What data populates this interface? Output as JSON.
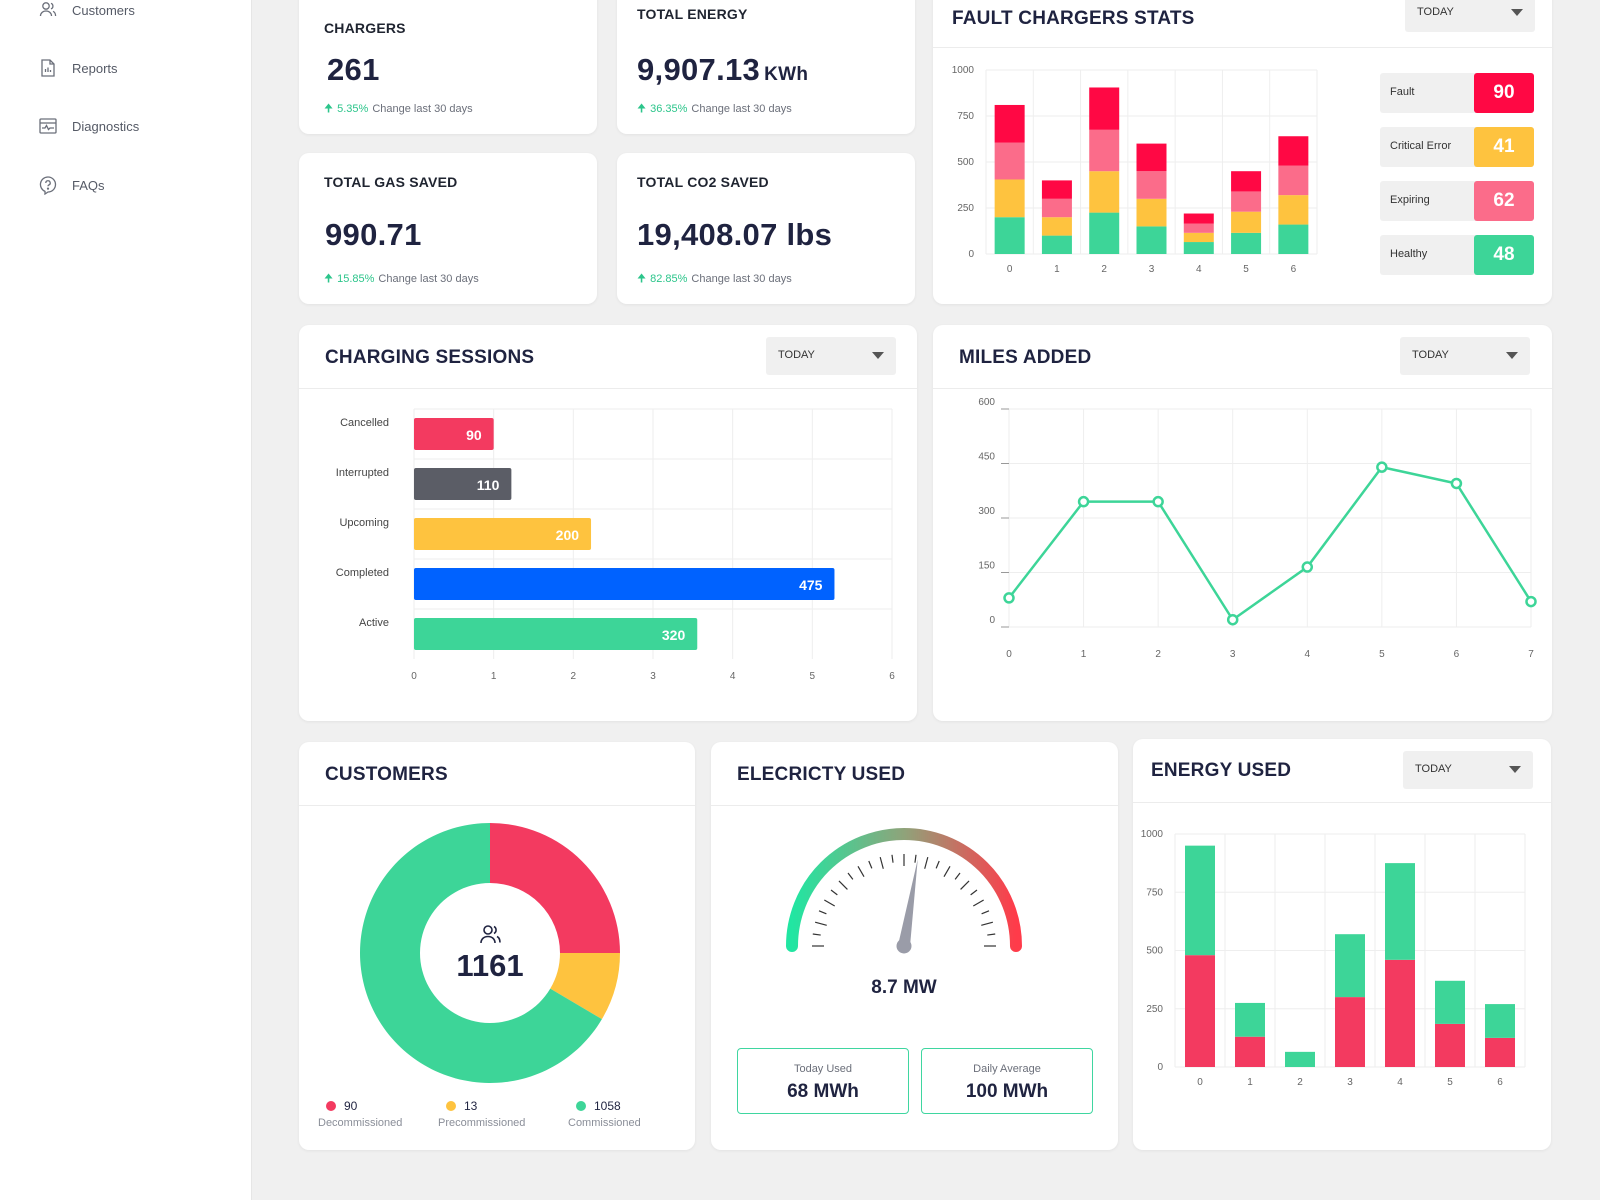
{
  "sidebar": {
    "items": [
      {
        "label": "Customers",
        "icon": "users-icon"
      },
      {
        "label": "Reports",
        "icon": "report-icon"
      },
      {
        "label": "Diagnostics",
        "icon": "diagnostics-icon"
      },
      {
        "label": "FAQs",
        "icon": "help-icon"
      }
    ]
  },
  "stats": {
    "chargers": {
      "title": "CHARGERS",
      "value": "261",
      "unit": "",
      "pct": "5.35%",
      "change": "Change last 30 days"
    },
    "energy": {
      "title": "TOTAL ENERGY",
      "value": "9,907.13",
      "unit": "KWh",
      "pct": "36.35%",
      "change": "Change last 30 days"
    },
    "gas": {
      "title": "TOTAL GAS SAVED",
      "value": "990.71",
      "unit": "",
      "pct": "15.85%",
      "change": "Change last 30 days"
    },
    "co2": {
      "title": "TOTAL CO2 SAVED",
      "value": "19,408.07 lbs",
      "unit": "",
      "pct": "82.85%",
      "change": "Change last 30 days"
    }
  },
  "fault": {
    "title": "FAULT CHARGERS STATS",
    "dropdown": "TODAY",
    "badges": [
      {
        "label": "Fault",
        "value": "90",
        "color": "#ff0844"
      },
      {
        "label": "Critical Error",
        "value": "41",
        "color": "#fec33f"
      },
      {
        "label": "Expiring",
        "value": "62",
        "color": "#fb6c8a"
      },
      {
        "label": "Healthy",
        "value": "48",
        "color": "#3dd598"
      }
    ]
  },
  "sessions": {
    "title": "CHARGING SESSIONS",
    "dropdown": "TODAY"
  },
  "miles": {
    "title": "MILES ADDED",
    "dropdown": "TODAY"
  },
  "customers": {
    "title": "CUSTOMERS",
    "total": "1161",
    "legend": [
      {
        "value": "90",
        "label": "Decommissioned",
        "color": "#f33a60"
      },
      {
        "value": "13",
        "label": "Precommissioned",
        "color": "#fec33f"
      },
      {
        "value": "1058",
        "label": "Commissioned",
        "color": "#3dd598"
      }
    ]
  },
  "electricity": {
    "title": "ELECRICTY USED",
    "reading": "8.7 MW",
    "gauge_fraction": 0.55,
    "today": {
      "label": "Today Used",
      "value": "68 MWh"
    },
    "average": {
      "label": "Daily Average",
      "value": "100 MWh"
    }
  },
  "energy_used": {
    "title": "ENERGY USED",
    "dropdown": "TODAY"
  },
  "chart_data": [
    {
      "id": "fault-chart",
      "type": "bar",
      "stacked": true,
      "categories": [
        "0",
        "1",
        "2",
        "3",
        "4",
        "5",
        "6"
      ],
      "ylim": [
        0,
        1000
      ],
      "yticks": [
        "0",
        "250",
        "500",
        "750",
        "1000"
      ],
      "series": [
        {
          "values": [
            200,
            100,
            225,
            150,
            65,
            115,
            160
          ],
          "color": "#3dd598"
        },
        {
          "values": [
            205,
            100,
            225,
            150,
            50,
            115,
            160
          ],
          "color": "#fec33f"
        },
        {
          "values": [
            200,
            100,
            225,
            150,
            50,
            110,
            160
          ],
          "color": "#fb6c8a"
        },
        {
          "values": [
            205,
            100,
            230,
            150,
            55,
            110,
            160
          ],
          "color": "#ff0844"
        }
      ]
    },
    {
      "id": "sessions-chart",
      "type": "bar",
      "horizontal": true,
      "categories": [
        "Cancelled",
        "Interrupted",
        "Upcoming",
        "Completed",
        "Active"
      ],
      "values": [
        90,
        110,
        200,
        475,
        320
      ],
      "colors": [
        "#f33a60",
        "#5b5d66",
        "#fec33f",
        "#0062ff",
        "#3dd598"
      ],
      "xticks": [
        "0",
        "1",
        "2",
        "3",
        "4",
        "5",
        "6"
      ]
    },
    {
      "id": "miles-chart",
      "type": "line",
      "x": [
        0,
        1,
        2,
        3,
        4,
        5,
        6,
        7
      ],
      "values": [
        80,
        345,
        345,
        20,
        165,
        440,
        395,
        70
      ],
      "ylim": [
        0,
        600
      ],
      "yticks": [
        "0",
        "150",
        "300",
        "450",
        "600"
      ],
      "xticks": [
        "0",
        "1",
        "2",
        "3",
        "4",
        "5",
        "6",
        "7"
      ],
      "color": "#3dd598"
    },
    {
      "id": "customers-chart",
      "type": "pie",
      "labels": [
        "Decommissioned",
        "Precommissioned",
        "Commissioned"
      ],
      "values": [
        90,
        13,
        1058
      ],
      "display_fractions": [
        0.25,
        0.085,
        0.665
      ],
      "colors": [
        "#f33a60",
        "#fec33f",
        "#3dd598"
      ]
    },
    {
      "id": "energy-chart",
      "type": "bar",
      "stacked": true,
      "categories": [
        "0",
        "1",
        "2",
        "3",
        "4",
        "5",
        "6"
      ],
      "ylim": [
        0,
        1000
      ],
      "yticks": [
        "0",
        "250",
        "500",
        "750",
        "1000"
      ],
      "series": [
        {
          "values": [
            480,
            130,
            0,
            300,
            460,
            185,
            125
          ],
          "color": "#f33a60"
        },
        {
          "values": [
            470,
            145,
            65,
            270,
            415,
            185,
            145
          ],
          "color": "#3dd598"
        }
      ]
    }
  ]
}
